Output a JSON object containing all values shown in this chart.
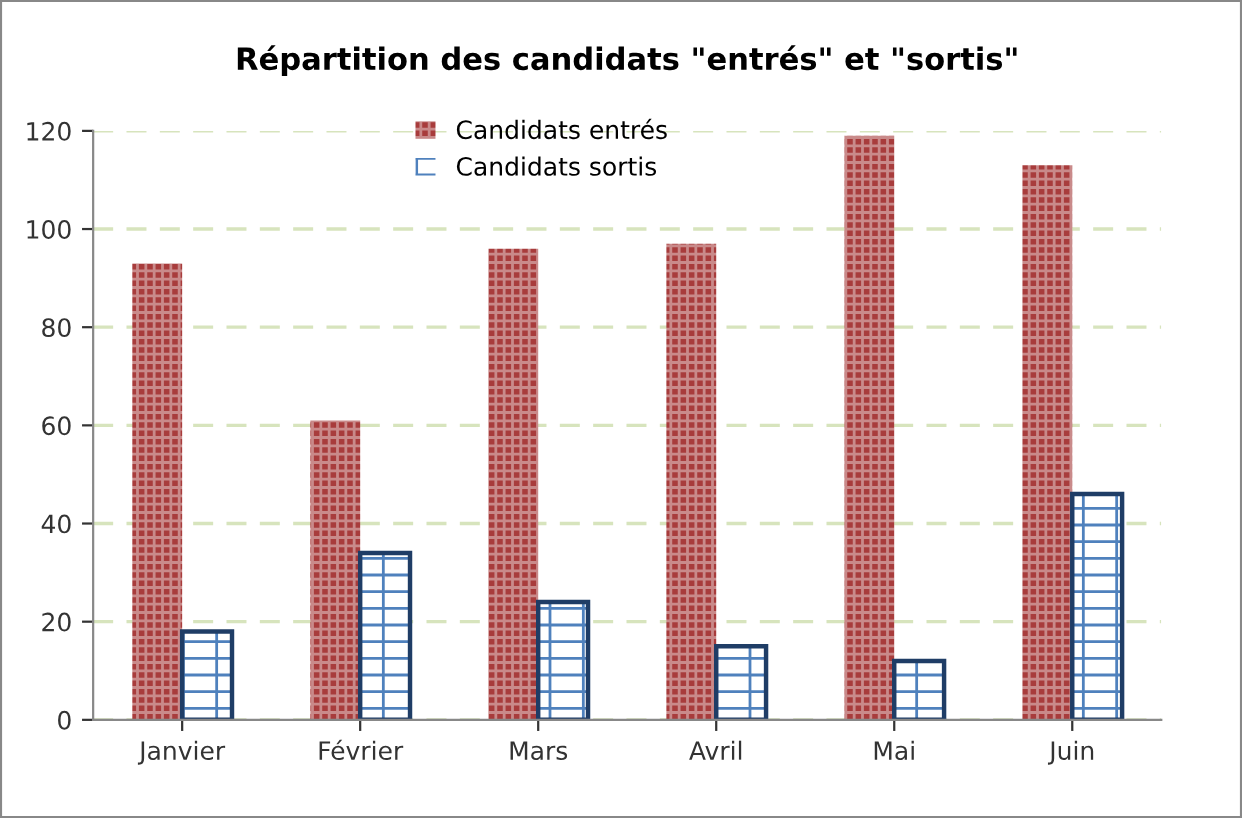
{
  "chart_data": {
    "type": "bar",
    "title": "Répartition des candidats \"entrés\" et \"sortis\"",
    "categories": [
      "Janvier",
      "Février",
      "Mars",
      "Avril",
      "Mai",
      "Juin"
    ],
    "series": [
      {
        "name": "Candidats entrés",
        "color": "#a83c3c",
        "values": [
          93,
          61,
          96,
          97,
          119,
          113
        ]
      },
      {
        "name": "Candidats sortis",
        "color": "#4f81bd",
        "values": [
          18,
          34,
          24,
          15,
          12,
          46
        ]
      }
    ],
    "ylim": [
      0,
      120
    ],
    "yticks": [
      0,
      20,
      40,
      60,
      80,
      100,
      120
    ],
    "grid": "y",
    "legend": "top"
  }
}
